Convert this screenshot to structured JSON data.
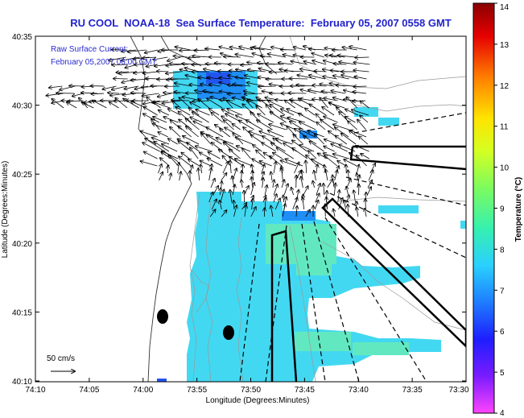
{
  "title": "RU COOL  NOAA-18  Sea Surface Temperature:  February 05, 2007 0558 GMT",
  "legend_line1": "Raw Surface Current:",
  "legend_line2": "February 05,2007 06:00 GMT",
  "scale_label": "50 cm/s",
  "x_axis": {
    "label": "Longitude (Degrees:Minutes)",
    "ticks": [
      "74:10",
      "74:05",
      "74:00",
      "73:55",
      "73:50",
      "73:45",
      "73:40",
      "73:35",
      "73:30"
    ]
  },
  "y_axis": {
    "label": "Latitude (Degrees:Minutes)",
    "ticks": [
      "40:35",
      "40:30",
      "40:25",
      "40:20",
      "40:15",
      "40:10"
    ]
  },
  "colorbar": {
    "label": "Temperature (°C)",
    "ticks": [
      "14",
      "13",
      "12",
      "11",
      "10",
      "9",
      "8",
      "7",
      "6",
      "5",
      "4"
    ],
    "min": 4,
    "max": 14,
    "colormap": [
      "#ff44ff",
      "#7a1cff",
      "#1e1eff",
      "#1f86ff",
      "#2ad0ff",
      "#36f0b0",
      "#7dfb5e",
      "#d5ff22",
      "#ffe300",
      "#ff7d00",
      "#e60000",
      "#8a0000"
    ]
  },
  "colors": {
    "sst_main": "#43d8f1",
    "sst_warm": "#62e8c0",
    "sst_cool": "#1f8ef5",
    "sst_dark": "#2255f0",
    "title": "#2222cc",
    "legend_text": "#2b2bd0",
    "land": "#ffffff",
    "contour": "#999999"
  }
}
